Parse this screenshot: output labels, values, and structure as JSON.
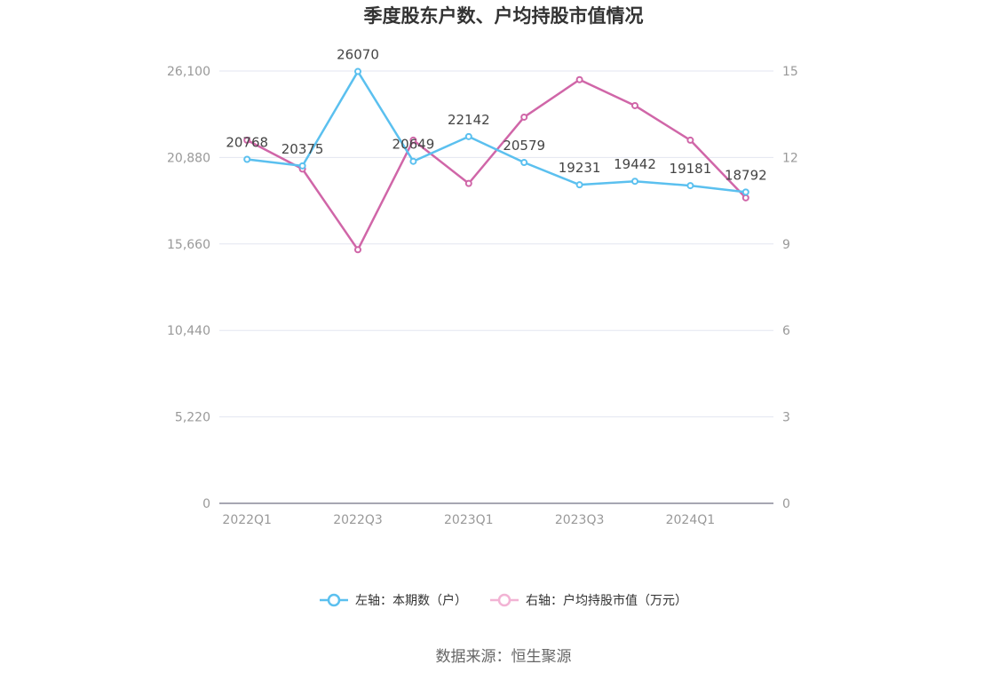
{
  "chart_data": {
    "type": "line",
    "title": "季度股东户数、户均持股市值情况",
    "categories": [
      "2022Q1",
      "2022Q2",
      "2022Q3",
      "2022Q4",
      "2023Q1",
      "2023Q2",
      "2023Q3",
      "2023Q4",
      "2024Q1",
      "2024Q2"
    ],
    "x_tick_labels": [
      "2022Q1",
      "2022Q3",
      "2023Q1",
      "2023Q3",
      "2024Q1"
    ],
    "series": [
      {
        "name": "左轴：本期数（户）",
        "axis": "left",
        "color": "#5bc0ef",
        "values": [
          20768,
          20375,
          26070,
          20649,
          22142,
          20579,
          19231,
          19442,
          19181,
          18792
        ],
        "show_labels": true
      },
      {
        "name": "右轴：户均持股市值（万元）",
        "axis": "right",
        "color": "#d066a8",
        "legend_color": "#f2b3d4",
        "values": [
          12.6,
          11.6,
          8.8,
          12.6,
          11.1,
          13.4,
          14.7,
          13.8,
          12.6,
          10.6
        ],
        "show_labels": false
      }
    ],
    "y_left": {
      "ticks": [
        0,
        5220,
        10440,
        15660,
        20880,
        26100
      ],
      "tick_labels": [
        "0",
        "5,220",
        "10,440",
        "15,660",
        "20,880",
        "26,100"
      ],
      "ylim": [
        0,
        26100
      ]
    },
    "y_right": {
      "ticks": [
        0,
        3,
        6,
        9,
        12,
        15
      ],
      "tick_labels": [
        "0",
        "3",
        "6",
        "9",
        "12",
        "15"
      ],
      "ylim": [
        0,
        15
      ]
    },
    "grid": true,
    "legend_position": "bottom"
  },
  "source": "数据来源：恒生聚源",
  "colors": {
    "grid": "#e3e6f0",
    "axis": "#8a8a99",
    "tick_text": "#999999"
  }
}
